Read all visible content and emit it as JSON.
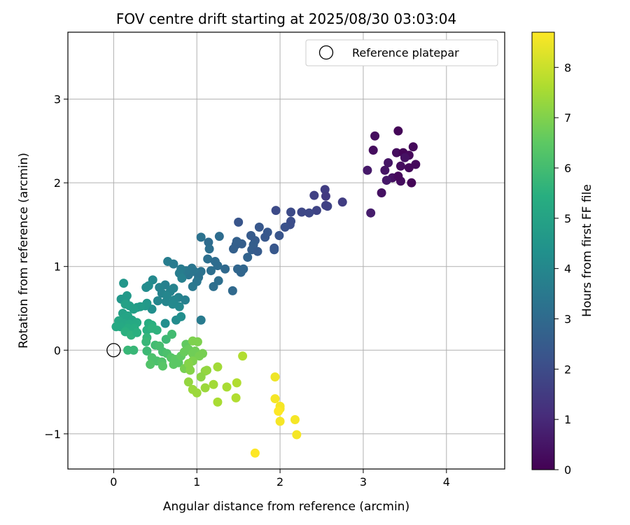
{
  "chart_data": {
    "type": "scatter",
    "title": "FOV centre drift starting at 2025/08/30 03:03:04",
    "xlabel": "Angular distance from reference (arcmin)",
    "ylabel": "Rotation from reference (arcmin)",
    "xlim": [
      -0.55,
      4.7
    ],
    "ylim": [
      -1.42,
      3.8
    ],
    "xticks": [
      0,
      1,
      2,
      3,
      4
    ],
    "xtick_labels": [
      "0",
      "1",
      "2",
      "3",
      "4"
    ],
    "yticks": [
      -1,
      0,
      1,
      2,
      3
    ],
    "ytick_labels": [
      "−1",
      "0",
      "1",
      "2",
      "3"
    ],
    "grid": true,
    "legend": {
      "position": "top-right",
      "entries": [
        {
          "label": "Reference platepar",
          "marker": "open-circle"
        }
      ]
    },
    "reference_point": {
      "x": 0,
      "y": 0
    },
    "colorbar": {
      "label": "Hours from first FF file",
      "min": 0,
      "max": 8.7,
      "ticks": [
        0,
        1,
        2,
        3,
        4,
        5,
        6,
        7,
        8
      ],
      "colormap": "viridis"
    },
    "points": [
      {
        "x": 3.42,
        "y": 2.62,
        "h": 0.1
      },
      {
        "x": 3.14,
        "y": 2.56,
        "h": 0.3
      },
      {
        "x": 3.12,
        "y": 2.39,
        "h": 0.3
      },
      {
        "x": 3.6,
        "y": 2.43,
        "h": 0.2
      },
      {
        "x": 3.4,
        "y": 2.36,
        "h": 0.3
      },
      {
        "x": 3.48,
        "y": 2.36,
        "h": 0.1
      },
      {
        "x": 3.55,
        "y": 2.33,
        "h": 0.2
      },
      {
        "x": 3.5,
        "y": 2.3,
        "h": 0.4
      },
      {
        "x": 3.63,
        "y": 2.22,
        "h": 0.2
      },
      {
        "x": 3.3,
        "y": 2.24,
        "h": 0.5
      },
      {
        "x": 3.45,
        "y": 2.2,
        "h": 0.3
      },
      {
        "x": 3.05,
        "y": 2.15,
        "h": 0.6
      },
      {
        "x": 3.26,
        "y": 2.15,
        "h": 0.5
      },
      {
        "x": 3.55,
        "y": 2.18,
        "h": 0.2
      },
      {
        "x": 3.35,
        "y": 2.06,
        "h": 0.4
      },
      {
        "x": 3.28,
        "y": 2.03,
        "h": 0.6
      },
      {
        "x": 3.45,
        "y": 2.02,
        "h": 0.3
      },
      {
        "x": 3.58,
        "y": 2.0,
        "h": 0.1
      },
      {
        "x": 3.42,
        "y": 2.08,
        "h": 0.2
      },
      {
        "x": 3.22,
        "y": 1.88,
        "h": 0.4
      },
      {
        "x": 3.09,
        "y": 1.64,
        "h": 0.7
      },
      {
        "x": 2.54,
        "y": 1.92,
        "h": 1.6
      },
      {
        "x": 2.41,
        "y": 1.85,
        "h": 1.7
      },
      {
        "x": 2.55,
        "y": 1.84,
        "h": 1.5
      },
      {
        "x": 2.75,
        "y": 1.77,
        "h": 1.6
      },
      {
        "x": 2.57,
        "y": 1.72,
        "h": 1.8
      },
      {
        "x": 2.55,
        "y": 1.73,
        "h": 1.7
      },
      {
        "x": 2.44,
        "y": 1.67,
        "h": 1.8
      },
      {
        "x": 2.35,
        "y": 1.64,
        "h": 1.9
      },
      {
        "x": 2.26,
        "y": 1.65,
        "h": 1.9
      },
      {
        "x": 2.13,
        "y": 1.65,
        "h": 2.0
      },
      {
        "x": 1.95,
        "y": 1.67,
        "h": 2.0
      },
      {
        "x": 2.13,
        "y": 1.54,
        "h": 2.1
      },
      {
        "x": 2.12,
        "y": 1.5,
        "h": 2.1
      },
      {
        "x": 2.06,
        "y": 1.47,
        "h": 2.2
      },
      {
        "x": 1.5,
        "y": 1.53,
        "h": 2.3
      },
      {
        "x": 1.85,
        "y": 1.41,
        "h": 2.4
      },
      {
        "x": 1.75,
        "y": 1.47,
        "h": 2.4
      },
      {
        "x": 1.99,
        "y": 1.37,
        "h": 2.3
      },
      {
        "x": 1.82,
        "y": 1.35,
        "h": 2.4
      },
      {
        "x": 1.7,
        "y": 1.31,
        "h": 2.5
      },
      {
        "x": 1.65,
        "y": 1.37,
        "h": 2.5
      },
      {
        "x": 1.68,
        "y": 1.26,
        "h": 2.6
      },
      {
        "x": 1.54,
        "y": 1.27,
        "h": 2.6
      },
      {
        "x": 1.47,
        "y": 1.26,
        "h": 2.6
      },
      {
        "x": 1.48,
        "y": 1.3,
        "h": 2.7
      },
      {
        "x": 1.44,
        "y": 1.21,
        "h": 2.7
      },
      {
        "x": 1.66,
        "y": 1.2,
        "h": 2.6
      },
      {
        "x": 1.73,
        "y": 1.18,
        "h": 2.5
      },
      {
        "x": 1.93,
        "y": 1.22,
        "h": 2.3
      },
      {
        "x": 1.93,
        "y": 1.2,
        "h": 2.4
      },
      {
        "x": 1.61,
        "y": 1.11,
        "h": 2.8
      },
      {
        "x": 1.56,
        "y": 0.97,
        "h": 2.9
      },
      {
        "x": 1.49,
        "y": 0.97,
        "h": 2.9
      },
      {
        "x": 1.53,
        "y": 0.93,
        "h": 2.9
      },
      {
        "x": 1.43,
        "y": 0.71,
        "h": 3.0
      },
      {
        "x": 1.34,
        "y": 0.97,
        "h": 3.0
      },
      {
        "x": 1.27,
        "y": 1.36,
        "h": 3.1
      },
      {
        "x": 1.14,
        "y": 1.29,
        "h": 3.1
      },
      {
        "x": 1.15,
        "y": 1.21,
        "h": 3.2
      },
      {
        "x": 1.05,
        "y": 1.35,
        "h": 3.3
      },
      {
        "x": 1.13,
        "y": 1.09,
        "h": 3.2
      },
      {
        "x": 1.22,
        "y": 1.06,
        "h": 3.1
      },
      {
        "x": 1.25,
        "y": 1.01,
        "h": 3.1
      },
      {
        "x": 1.17,
        "y": 0.95,
        "h": 3.2
      },
      {
        "x": 1.05,
        "y": 0.94,
        "h": 3.3
      },
      {
        "x": 1.01,
        "y": 0.92,
        "h": 3.3
      },
      {
        "x": 0.97,
        "y": 0.94,
        "h": 3.4
      },
      {
        "x": 0.94,
        "y": 0.98,
        "h": 3.4
      },
      {
        "x": 0.9,
        "y": 0.9,
        "h": 3.4
      },
      {
        "x": 0.87,
        "y": 0.95,
        "h": 3.5
      },
      {
        "x": 1.26,
        "y": 0.83,
        "h": 3.2
      },
      {
        "x": 1.2,
        "y": 0.76,
        "h": 3.2
      },
      {
        "x": 1.02,
        "y": 0.87,
        "h": 3.3
      },
      {
        "x": 1.0,
        "y": 0.82,
        "h": 3.4
      },
      {
        "x": 0.95,
        "y": 0.76,
        "h": 3.5
      },
      {
        "x": 1.05,
        "y": 0.36,
        "h": 3.6
      },
      {
        "x": 0.65,
        "y": 1.06,
        "h": 3.7
      },
      {
        "x": 0.72,
        "y": 1.03,
        "h": 3.6
      },
      {
        "x": 0.81,
        "y": 0.97,
        "h": 3.6
      },
      {
        "x": 0.79,
        "y": 0.92,
        "h": 3.7
      },
      {
        "x": 0.82,
        "y": 0.86,
        "h": 3.8
      },
      {
        "x": 0.62,
        "y": 0.78,
        "h": 3.8
      },
      {
        "x": 0.55,
        "y": 0.75,
        "h": 3.9
      },
      {
        "x": 0.72,
        "y": 0.74,
        "h": 3.9
      },
      {
        "x": 0.68,
        "y": 0.7,
        "h": 3.9
      },
      {
        "x": 0.58,
        "y": 0.68,
        "h": 3.9
      },
      {
        "x": 0.64,
        "y": 0.65,
        "h": 4.0
      },
      {
        "x": 0.78,
        "y": 0.63,
        "h": 3.9
      },
      {
        "x": 0.73,
        "y": 0.6,
        "h": 4.0
      },
      {
        "x": 0.86,
        "y": 0.6,
        "h": 3.8
      },
      {
        "x": 0.63,
        "y": 0.58,
        "h": 4.0
      },
      {
        "x": 0.53,
        "y": 0.59,
        "h": 4.0
      },
      {
        "x": 0.71,
        "y": 0.55,
        "h": 4.1
      },
      {
        "x": 0.79,
        "y": 0.52,
        "h": 4.1
      },
      {
        "x": 0.47,
        "y": 0.84,
        "h": 4.1
      },
      {
        "x": 0.42,
        "y": 0.77,
        "h": 4.2
      },
      {
        "x": 0.39,
        "y": 0.75,
        "h": 4.2
      },
      {
        "x": 0.46,
        "y": 0.49,
        "h": 4.3
      },
      {
        "x": 0.75,
        "y": 0.36,
        "h": 4.2
      },
      {
        "x": 0.62,
        "y": 0.32,
        "h": 4.3
      },
      {
        "x": 0.81,
        "y": 0.4,
        "h": 4.3
      },
      {
        "x": 0.12,
        "y": 0.8,
        "h": 4.6
      },
      {
        "x": 0.09,
        "y": 0.61,
        "h": 4.6
      },
      {
        "x": 0.16,
        "y": 0.65,
        "h": 4.7
      },
      {
        "x": 0.14,
        "y": 0.59,
        "h": 4.7
      },
      {
        "x": 0.4,
        "y": 0.56,
        "h": 4.6
      },
      {
        "x": 0.38,
        "y": 0.53,
        "h": 4.7
      },
      {
        "x": 0.32,
        "y": 0.52,
        "h": 4.8
      },
      {
        "x": 0.28,
        "y": 0.51,
        "h": 4.8
      },
      {
        "x": 0.24,
        "y": 0.49,
        "h": 4.9
      },
      {
        "x": 0.19,
        "y": 0.53,
        "h": 4.9
      },
      {
        "x": 0.14,
        "y": 0.55,
        "h": 5.0
      },
      {
        "x": 0.11,
        "y": 0.44,
        "h": 5.0
      },
      {
        "x": 0.17,
        "y": 0.41,
        "h": 5.1
      },
      {
        "x": 0.22,
        "y": 0.36,
        "h": 5.1
      },
      {
        "x": 0.12,
        "y": 0.38,
        "h": 5.1
      },
      {
        "x": 0.06,
        "y": 0.35,
        "h": 5.2
      },
      {
        "x": 0.13,
        "y": 0.32,
        "h": 5.2
      },
      {
        "x": 0.08,
        "y": 0.28,
        "h": 5.3
      },
      {
        "x": 0.03,
        "y": 0.28,
        "h": 5.3
      },
      {
        "x": 0.19,
        "y": 0.31,
        "h": 5.3
      },
      {
        "x": 0.17,
        "y": 0.26,
        "h": 5.4
      },
      {
        "x": 0.28,
        "y": 0.33,
        "h": 5.3
      },
      {
        "x": 0.25,
        "y": 0.26,
        "h": 5.4
      },
      {
        "x": 0.14,
        "y": 0.22,
        "h": 5.5
      },
      {
        "x": 0.21,
        "y": 0.18,
        "h": 5.6
      },
      {
        "x": 0.28,
        "y": 0.21,
        "h": 5.5
      },
      {
        "x": 0.42,
        "y": 0.32,
        "h": 5.4
      },
      {
        "x": 0.46,
        "y": 0.3,
        "h": 5.5
      },
      {
        "x": 0.4,
        "y": 0.24,
        "h": 5.5
      },
      {
        "x": 0.46,
        "y": 0.26,
        "h": 5.6
      },
      {
        "x": 0.52,
        "y": 0.24,
        "h": 5.6
      },
      {
        "x": 0.4,
        "y": 0.15,
        "h": 5.7
      },
      {
        "x": 0.39,
        "y": 0.1,
        "h": 5.8
      },
      {
        "x": 0.17,
        "y": 0.0,
        "h": 5.8
      },
      {
        "x": 0.24,
        "y": 0.0,
        "h": 5.8
      },
      {
        "x": 0.4,
        "y": -0.01,
        "h": 5.9
      },
      {
        "x": 0.63,
        "y": 0.13,
        "h": 5.9
      },
      {
        "x": 0.7,
        "y": 0.19,
        "h": 6.0
      },
      {
        "x": 0.5,
        "y": 0.06,
        "h": 6.0
      },
      {
        "x": 0.55,
        "y": 0.05,
        "h": 6.1
      },
      {
        "x": 0.59,
        "y": -0.02,
        "h": 6.1
      },
      {
        "x": 0.64,
        "y": -0.04,
        "h": 6.2
      },
      {
        "x": 0.46,
        "y": -0.09,
        "h": 6.2
      },
      {
        "x": 0.52,
        "y": -0.13,
        "h": 6.2
      },
      {
        "x": 0.44,
        "y": -0.17,
        "h": 6.3
      },
      {
        "x": 0.58,
        "y": -0.14,
        "h": 6.3
      },
      {
        "x": 0.59,
        "y": -0.19,
        "h": 6.4
      },
      {
        "x": 0.69,
        "y": -0.09,
        "h": 6.4
      },
      {
        "x": 0.74,
        "y": -0.11,
        "h": 6.5
      },
      {
        "x": 0.78,
        "y": -0.15,
        "h": 6.5
      },
      {
        "x": 0.72,
        "y": -0.17,
        "h": 6.5
      },
      {
        "x": 0.81,
        "y": -0.07,
        "h": 6.6
      },
      {
        "x": 0.87,
        "y": 0.07,
        "h": 6.6
      },
      {
        "x": 0.9,
        "y": 0.01,
        "h": 6.7
      },
      {
        "x": 0.85,
        "y": -0.02,
        "h": 6.7
      },
      {
        "x": 0.95,
        "y": -0.04,
        "h": 6.8
      },
      {
        "x": 0.98,
        "y": -0.01,
        "h": 6.8
      },
      {
        "x": 1.03,
        "y": -0.07,
        "h": 6.9
      },
      {
        "x": 1.07,
        "y": -0.04,
        "h": 6.9
      },
      {
        "x": 0.95,
        "y": 0.11,
        "h": 7.0
      },
      {
        "x": 1.01,
        "y": 0.1,
        "h": 7.0
      },
      {
        "x": 0.9,
        "y": -0.2,
        "h": 6.8
      },
      {
        "x": 0.85,
        "y": -0.22,
        "h": 6.9
      },
      {
        "x": 0.95,
        "y": -0.13,
        "h": 7.0
      },
      {
        "x": 0.9,
        "y": -0.16,
        "h": 7.1
      },
      {
        "x": 0.92,
        "y": -0.24,
        "h": 7.1
      },
      {
        "x": 1.05,
        "y": -0.32,
        "h": 7.2
      },
      {
        "x": 1.1,
        "y": -0.25,
        "h": 7.2
      },
      {
        "x": 1.12,
        "y": -0.24,
        "h": 7.3
      },
      {
        "x": 0.9,
        "y": -0.38,
        "h": 7.3
      },
      {
        "x": 0.95,
        "y": -0.47,
        "h": 7.4
      },
      {
        "x": 1.0,
        "y": -0.51,
        "h": 7.4
      },
      {
        "x": 1.1,
        "y": -0.45,
        "h": 7.4
      },
      {
        "x": 1.2,
        "y": -0.41,
        "h": 7.5
      },
      {
        "x": 1.25,
        "y": -0.2,
        "h": 7.5
      },
      {
        "x": 1.25,
        "y": -0.62,
        "h": 7.6
      },
      {
        "x": 1.36,
        "y": -0.44,
        "h": 7.6
      },
      {
        "x": 1.48,
        "y": -0.39,
        "h": 7.7
      },
      {
        "x": 1.47,
        "y": -0.57,
        "h": 7.7
      },
      {
        "x": 1.55,
        "y": -0.07,
        "h": 7.7
      },
      {
        "x": 1.94,
        "y": -0.32,
        "h": 8.5
      },
      {
        "x": 1.94,
        "y": -0.58,
        "h": 8.6
      },
      {
        "x": 2.0,
        "y": -0.67,
        "h": 8.6
      },
      {
        "x": 2.0,
        "y": -0.7,
        "h": 8.6
      },
      {
        "x": 1.98,
        "y": -0.73,
        "h": 8.7
      },
      {
        "x": 2.18,
        "y": -0.83,
        "h": 8.6
      },
      {
        "x": 2.0,
        "y": -0.85,
        "h": 8.6
      },
      {
        "x": 2.2,
        "y": -1.01,
        "h": 8.6
      },
      {
        "x": 1.7,
        "y": -1.23,
        "h": 8.7
      }
    ]
  }
}
